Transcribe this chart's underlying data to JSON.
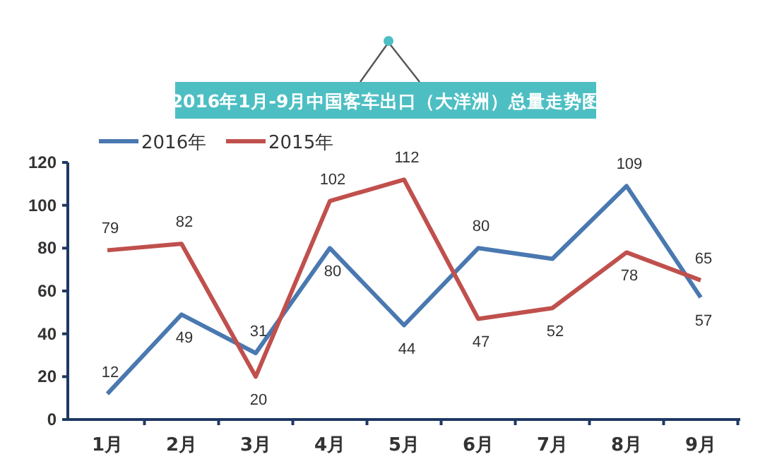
{
  "chart_data": {
    "type": "line",
    "title": "2016年1月-9月中国客车出口（大洋洲）总量走势图",
    "categories": [
      "1月",
      "2月",
      "3月",
      "4月",
      "5月",
      "6月",
      "7月",
      "8月",
      "9月"
    ],
    "series": [
      {
        "name": "2016年",
        "color": "#4a78b0",
        "values": [
          12,
          49,
          31,
          80,
          44,
          80,
          75,
          109,
          57
        ],
        "value_labels": [
          "12",
          "49",
          "31",
          "80",
          "44",
          "80",
          null,
          "109",
          "57"
        ]
      },
      {
        "name": "2015年",
        "color": "#c0504d",
        "values": [
          79,
          82,
          20,
          102,
          112,
          47,
          52,
          78,
          65
        ],
        "value_labels": [
          "79",
          "82",
          "20",
          "102",
          "112",
          "47",
          "52",
          "78",
          "65"
        ]
      }
    ],
    "ylim": [
      0,
      120
    ],
    "yticks": [
      0,
      20,
      40,
      60,
      80,
      100,
      120
    ],
    "grid": false,
    "legend": "top left",
    "marker": "none",
    "line_style": "solid"
  }
}
